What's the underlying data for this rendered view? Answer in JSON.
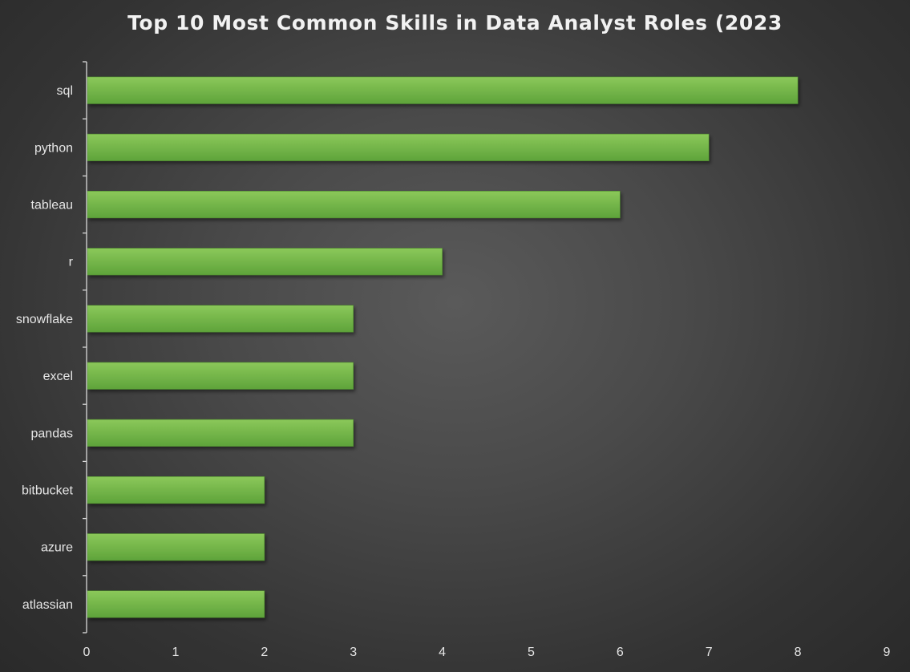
{
  "chart_data": {
    "type": "bar",
    "orientation": "horizontal",
    "title": "Top 10 Most Common Skills in Data Analyst Roles (2023",
    "xlabel": "",
    "ylabel": "",
    "categories": [
      "sql",
      "python",
      "tableau",
      "r",
      "snowflake",
      "excel",
      "pandas",
      "bitbucket",
      "azure",
      "atlassian"
    ],
    "values": [
      8,
      7,
      6,
      4,
      3,
      3,
      3,
      2,
      2,
      2
    ],
    "xlim": [
      0,
      9
    ],
    "xticks": [
      "0",
      "1",
      "2",
      "3",
      "4",
      "5",
      "6",
      "7",
      "8",
      "9"
    ],
    "grid": false,
    "legend": "none",
    "colors": {
      "bar_top": "#8bc85a",
      "bar_bottom": "#5ea33a",
      "bar_edge": "#4d8a2e",
      "axis": "#d9d9d9",
      "text": "#e6e6e6",
      "title": "#f2f2f2"
    }
  }
}
